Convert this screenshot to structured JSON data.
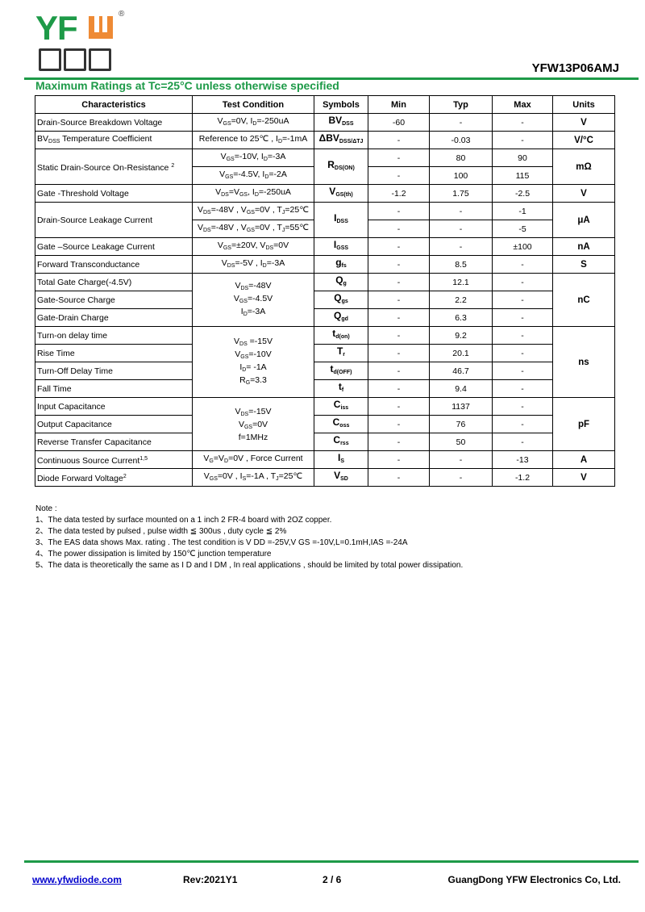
{
  "logo": {
    "text": "YFW",
    "chinese": "佑风微",
    "registered": "®",
    "green": "#1e9a48",
    "orange": "#ee8a35"
  },
  "part_number": "YFW13P06AMJ",
  "section_title": "Maximum Ratings at Tc=25°C unless otherwise specified",
  "table": {
    "headers": [
      "Characteristics",
      "Test Condition",
      "Symbols",
      "Min",
      "Typ",
      "Max",
      "Units"
    ],
    "groups": [
      {
        "unit": "V",
        "items": [
          {
            "char": "Drain-Source Breakdown Voltage",
            "cond": "V_{GS}=0V, I_{D}=-250uA",
            "sym": "BV_{DSS}",
            "min": "-60",
            "typ": "-",
            "max": "-"
          }
        ]
      },
      {
        "unit": "V/°C",
        "items": [
          {
            "char": "BV_{DSS} Temperature Coefficient",
            "cond": "Reference to 25℃ , I_{D}=-1mA",
            "sym": "ΔBV_{DSS/ΔTJ}",
            "min": "-",
            "typ": "-0.03",
            "max": "-"
          }
        ]
      },
      {
        "unit": "mΩ",
        "char": "Static Drain-Source On-Resistance ^{2}",
        "sym": "R_{DS(ON)}",
        "items": [
          {
            "cond": "V_{GS}=-10V, I_{D}=-3A",
            "min": "-",
            "typ": "80",
            "max": "90"
          },
          {
            "cond": "V_{GS}=-4.5V, I_{D}=-2A",
            "min": "-",
            "typ": "100",
            "max": "115"
          }
        ]
      },
      {
        "unit": "V",
        "items": [
          {
            "char": "Gate -Threshold  Voltage",
            "cond": "V_{DS}=V_{GS}, I_{D}=-250uA",
            "sym": "V_{GS(th)}",
            "min": "-1.2",
            "typ": "1.75",
            "max": "-2.5"
          }
        ]
      },
      {
        "unit": "μA",
        "char": "Drain-Source Leakage Current",
        "sym": "I_{DSS}",
        "items": [
          {
            "cond": "V_{DS}=-48V , V_{GS}=0V , T_{J}=25℃",
            "min": "-",
            "typ": "-",
            "max": "-1"
          },
          {
            "cond": "V_{DS}=-48V , V_{GS}=0V , T_{J}=55℃",
            "min": "-",
            "typ": "-",
            "max": "-5"
          }
        ]
      },
      {
        "unit": "nA",
        "items": [
          {
            "char": "Gate –Source  Leakage Current",
            "cond": "V_{GS}=±20V, V_{DS}=0V",
            "sym": "I_{GSS}",
            "min": "-",
            "typ": "-",
            "max": "±100"
          }
        ]
      },
      {
        "unit": "S",
        "items": [
          {
            "char": "Forward Transconductance",
            "cond": "V_{DS}=-5V , I_{D}=-3A",
            "sym": "g_{fs}",
            "min": "-",
            "typ": "8.5",
            "max": "-"
          }
        ]
      },
      {
        "unit": "nC",
        "cond": [
          "V_{DS}=-48V",
          "V_{GS}=-4.5V",
          "I_{D}=-3A"
        ],
        "items": [
          {
            "char": "Total Gate Charge(-4.5V)",
            "sym": "Q_{g}",
            "min": "-",
            "typ": "12.1",
            "max": "-"
          },
          {
            "char": "Gate-Source Charge",
            "sym": "Q_{gs}",
            "min": "-",
            "typ": "2.2",
            "max": "-"
          },
          {
            "char": "Gate-Drain Charge",
            "sym": "Q_{gd}",
            "min": "-",
            "typ": "6.3",
            "max": "-"
          }
        ]
      },
      {
        "unit": "ns",
        "cond": [
          "V_{DS} =-15V",
          "V_{GS}=-10V",
          "I_{D}= -1A",
          "R_{G}=3.3"
        ],
        "items": [
          {
            "char": "Turn-on delay time",
            "sym": "t_{d(on)}",
            "min": "-",
            "typ": "9.2",
            "max": "-"
          },
          {
            "char": "Rise Time",
            "sym": "T_{r}",
            "min": "-",
            "typ": "20.1",
            "max": "-"
          },
          {
            "char": "Turn-Off  Delay Time",
            "sym": "t_{d(OFF)}",
            "min": "-",
            "typ": "46.7",
            "max": "-"
          },
          {
            "char": "Fall Time",
            "sym": "t_{f}",
            "min": "-",
            "typ": "9.4",
            "max": "-"
          }
        ]
      },
      {
        "unit": "pF",
        "cond": [
          "V_{DS}=-15V",
          "V_{GS}=0V",
          "f=1MHz"
        ],
        "items": [
          {
            "char": "Input Capacitance",
            "sym": "C_{iss}",
            "min": "-",
            "typ": "1137",
            "max": "-"
          },
          {
            "char": "Output Capacitance",
            "sym": "C_{oss}",
            "min": "-",
            "typ": "76",
            "max": "-"
          },
          {
            "char": "Reverse Transfer Capacitance",
            "sym": "C_{rss}",
            "min": "-",
            "typ": "50",
            "max": "-"
          }
        ]
      },
      {
        "unit": "A",
        "items": [
          {
            "char": "Continuous Source Current^{1,5}",
            "cond": "V_{G}=V_{D}=0V , Force Current",
            "sym": "I_{S}",
            "min": "-",
            "typ": "-",
            "max": "-13"
          }
        ]
      },
      {
        "unit": "V",
        "items": [
          {
            "char": "Diode Forward Voltage^{2}",
            "cond": "V_{GS}=0V , I_{S}=-1A , T_{J}=25℃",
            "sym": "V_{SD}",
            "min": "-",
            "typ": "-",
            "max": "-1.2"
          }
        ]
      }
    ]
  },
  "notes": {
    "title": "Note :",
    "items": [
      "1、The data tested by surface mounted on a 1 inch 2 FR-4 board with 2OZ copper.",
      "2、The data tested by pulsed , pulse width ≦ 300us , duty cycle ≦ 2%",
      "3、The EAS data shows Max. rating . The test condition is V DD =-25V,V GS =-10V,L=0.1mH,IAS =-24A",
      "4、The power dissipation is limited by 150℃ junction temperature",
      "5、The data is theoretically the same as I D and I DM , In real applications , should be limited by total power dissipation."
    ]
  },
  "footer": {
    "website": "www.yfwdiode.com",
    "revision": "Rev:2021Y1",
    "page": "2 / 6",
    "company": "GuangDong YFW Electronics Co, Ltd."
  }
}
